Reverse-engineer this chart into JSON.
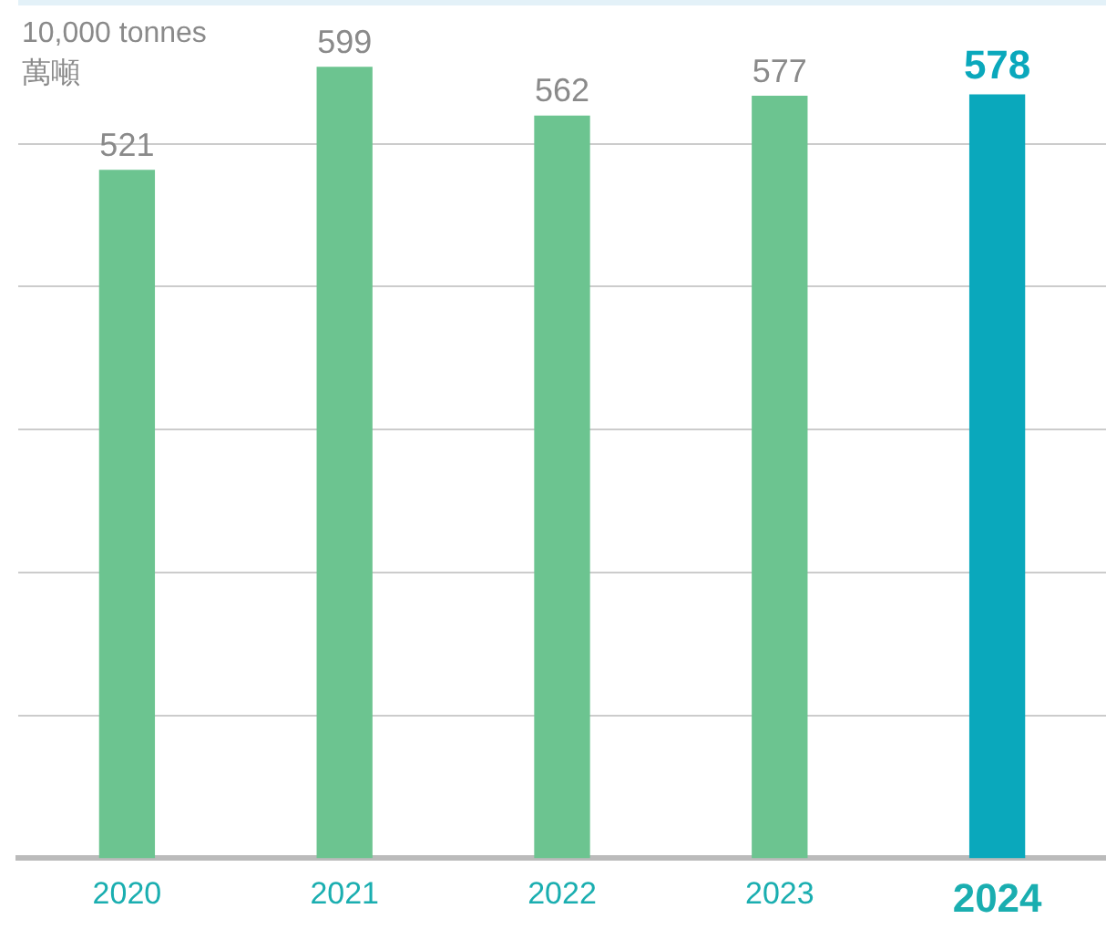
{
  "chart_data": {
    "type": "bar",
    "ylabel": "10,000 tonnes\n萬噸",
    "categories": [
      "2020",
      "2021",
      "2022",
      "2023",
      "2024"
    ],
    "values": [
      521,
      599,
      562,
      577,
      578
    ],
    "colors": [
      "#6cc490",
      "#6cc490",
      "#6cc490",
      "#6cc490",
      "#0aa8bc"
    ],
    "data_labels": true,
    "ylim": [
      0,
      650
    ],
    "yticks": [
      {
        "value": 108,
        "label": null
      },
      {
        "value": 216,
        "label": null
      },
      {
        "value": 325,
        "label": null
      },
      {
        "value": 433,
        "label": null
      },
      {
        "value": 541,
        "label": null
      }
    ],
    "grid": "y",
    "tick_labels": "x",
    "legend": false
  }
}
